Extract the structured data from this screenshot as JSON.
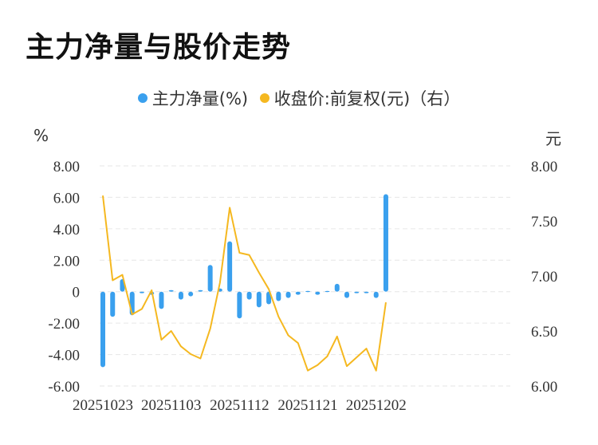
{
  "title": "主力净量与股价走势",
  "legend": {
    "bar_label": "主力净量(%)",
    "line_label": "收盘价:前复权(元)（右）"
  },
  "left_unit": "%",
  "right_unit": "元",
  "colors": {
    "bar": "#3aa0ee",
    "line": "#f5b820",
    "grid": "#e6e6e6"
  },
  "chart_data": {
    "type": "bar+line",
    "title": "主力净量与股价走势",
    "x_tick_labels": [
      "20251023",
      "20251103",
      "20251112",
      "20251121",
      "20251202"
    ],
    "y_left": {
      "unit": "%",
      "lim": [
        -6,
        8
      ],
      "ticks": [
        "8.00",
        "6.00",
        "4.00",
        "2.00",
        "0",
        "-2.00",
        "-4.00",
        "-6.00"
      ]
    },
    "y_right": {
      "unit": "元",
      "lim": [
        6,
        8
      ],
      "ticks": [
        "8.00",
        "7.50",
        "7.00",
        "6.50",
        "6.00"
      ]
    },
    "grid": true,
    "legend_position": "top",
    "series": [
      {
        "name": "主力净量(%)",
        "kind": "bar",
        "axis": "left",
        "values": [
          -4.8,
          -1.6,
          0.8,
          -1.5,
          -0.1,
          -0.2,
          -1.1,
          0.1,
          -0.5,
          -0.3,
          0.1,
          1.7,
          0.2,
          3.2,
          -1.7,
          -0.5,
          -1.0,
          -0.8,
          -0.6,
          -0.4,
          -0.2,
          0.05,
          -0.2,
          0.05,
          0.5,
          -0.4,
          -0.1,
          -0.1,
          -0.4,
          6.2
        ]
      },
      {
        "name": "收盘价:前复权(元)（右）",
        "kind": "line",
        "axis": "right",
        "values": [
          7.73,
          6.96,
          7.01,
          6.65,
          6.7,
          6.87,
          6.42,
          6.5,
          6.36,
          6.29,
          6.25,
          6.52,
          6.94,
          7.62,
          7.21,
          7.19,
          7.03,
          6.88,
          6.63,
          6.46,
          6.39,
          6.14,
          6.19,
          6.27,
          6.45,
          6.18,
          6.26,
          6.34,
          6.14,
          6.76
        ]
      }
    ]
  }
}
